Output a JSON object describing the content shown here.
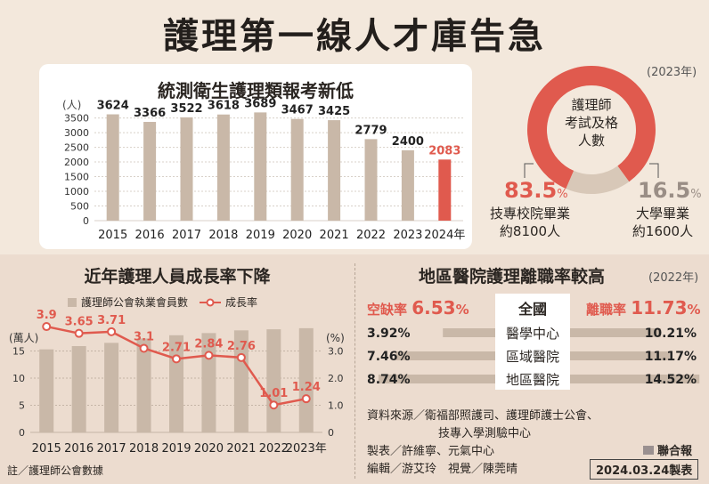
{
  "main_title": "護理第一線人才庫告急",
  "chart_data": [
    {
      "type": "bar",
      "title": "統測衛生護理類報考新低",
      "ylabel": "(人)",
      "categories": [
        "2015",
        "2016",
        "2017",
        "2018",
        "2019",
        "2020",
        "2021",
        "2022",
        "2023",
        "2024年"
      ],
      "values": [
        3624,
        3366,
        3522,
        3618,
        3689,
        3467,
        3425,
        2779,
        2400,
        2083
      ],
      "value_labels": [
        "3624",
        "3366",
        "3522",
        "3618",
        "3689",
        "3467",
        "3425",
        "2779",
        "2400",
        "2083"
      ],
      "yticks": [
        "0",
        "500",
        "1000",
        "1500",
        "2000",
        "2500",
        "3000",
        "3500"
      ],
      "ylim": [
        0,
        3700
      ],
      "bar_color": "#c9b8a8",
      "highlight_color": "#e05a4e",
      "highlight_index": 9
    },
    {
      "type": "pie",
      "year_note": "(2023年)",
      "center_label": [
        "護理師",
        "考試及格",
        "人數"
      ],
      "slices": [
        {
          "name": "技專校院畢業",
          "detail": "約8100人",
          "value": 83.5,
          "pct": "83.5",
          "unit": "%",
          "color": "#e05a4e"
        },
        {
          "name": "大學畢業",
          "detail": "約1600人",
          "value": 16.5,
          "pct": "16.5",
          "unit": "%",
          "color": "#d8c8b8"
        }
      ]
    },
    {
      "type": "bar",
      "title": "近年護理人員成長率下降",
      "legend": [
        "護理師公會執業會員數",
        "成長率"
      ],
      "left_ylabel": "(萬人)",
      "right_ylabel": "(%)",
      "categories": [
        "2015",
        "2016",
        "2017",
        "2018",
        "2019",
        "2020",
        "2021",
        "2022",
        "2023年"
      ],
      "series": [
        {
          "name": "護理師公會執業會員數",
          "type": "bar",
          "values": [
            15.3,
            15.9,
            16.5,
            17.3,
            17.9,
            18.3,
            18.8,
            19.0,
            19.2
          ],
          "color": "#c9b8a8"
        },
        {
          "name": "成長率",
          "type": "line",
          "values": [
            3.9,
            3.65,
            3.71,
            3.1,
            2.71,
            2.84,
            2.76,
            1.01,
            1.24
          ],
          "labels": [
            "3.9",
            "3.65",
            "3.71",
            "3.1",
            "2.71",
            "2.84",
            "2.76",
            "1.01",
            "1.24"
          ],
          "color": "#e05a4e"
        }
      ],
      "left_yticks": [
        "0",
        "5",
        "10",
        "15"
      ],
      "right_yticks": [
        "0",
        "1.0",
        "2.0",
        "3.0"
      ],
      "left_ylim": [
        0,
        20
      ],
      "right_ylim": [
        0,
        4
      ],
      "note": "註／護理師公會數據"
    },
    {
      "type": "bar",
      "title": "地區醫院護理離職率較高",
      "year_note": "(2022年)",
      "left_header": {
        "label": "空缺率",
        "value": "6.53",
        "unit": "%"
      },
      "center_header": "全國",
      "right_header": {
        "label": "離職率",
        "value": "11.73",
        "unit": "%"
      },
      "categories": [
        "醫學中心",
        "區域醫院",
        "地區醫院"
      ],
      "series": [
        {
          "name": "空缺率",
          "values": [
            3.92,
            7.46,
            8.74
          ],
          "labels": [
            "3.92",
            "7.46",
            "8.74"
          ],
          "unit": "%"
        },
        {
          "name": "離職率",
          "values": [
            10.21,
            11.17,
            14.52
          ],
          "labels": [
            "10.21",
            "11.17",
            "14.52"
          ],
          "unit": "%"
        }
      ],
      "bar_color": "#c9b8a8"
    }
  ],
  "credits": {
    "source_1": "資料來源／衛福部照護司、護理師護士公會、",
    "source_2": "技專入學測驗中心",
    "design": "製表／許維寧、元氣中心",
    "editor": "編輯／游艾玲　視覺／陳莞晴",
    "paper": "聯合報",
    "date_stamp": "2024.03.24製表"
  }
}
